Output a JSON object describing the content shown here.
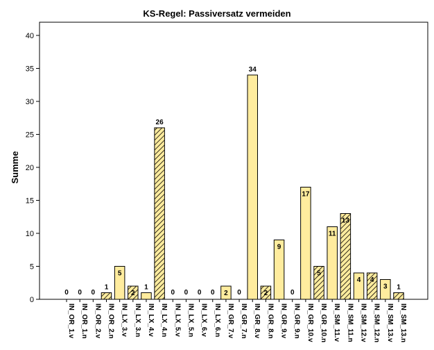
{
  "chart_data": {
    "type": "bar",
    "title": "KS-Regel: Passiversatz vermeiden",
    "xlabel": "",
    "ylabel": "Summe",
    "ylim": [
      0,
      42
    ],
    "yticks": [
      0,
      5,
      10,
      15,
      20,
      25,
      30,
      35,
      40
    ],
    "grid": false,
    "categories": [
      "IN_OR_1.v",
      "IN_OR_1.n",
      "IN_OR_2.v",
      "IN_OR_2.n",
      "IN_LX_3.v",
      "IN_LX_3.n",
      "IN_LX_4.v",
      "IN_LX_4.n",
      "IN_LX_5.v",
      "IN_LX_5.n",
      "IN_LX_6.v",
      "IN_LX_6.n",
      "IN_GR_7.v",
      "IN_GR_7.n",
      "IN_GR_8.v",
      "IN_GR_8.n",
      "IN_GR_9.v",
      "IN_GR_9.n",
      "IN_GR_10.v",
      "IN_GR_10.n",
      "IN_SM_11.v",
      "IN_SM_11.n",
      "IN_SM_12.v",
      "IN_SM_12.n",
      "IN_SM_13.v",
      "IN_SM_13.n"
    ],
    "values": [
      0,
      0,
      0,
      1,
      5,
      2,
      1,
      26,
      0,
      0,
      0,
      0,
      2,
      0,
      34,
      2,
      9,
      0,
      17,
      5,
      11,
      13,
      4,
      4,
      3,
      1
    ],
    "colors": {
      "bar_fill": "#ffec9e",
      "bar_stroke": "#000000",
      "hatch": "#000000"
    }
  }
}
